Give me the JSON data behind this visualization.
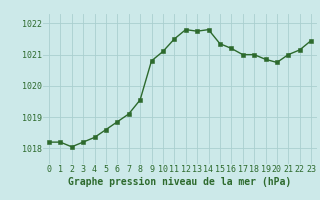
{
  "x": [
    0,
    1,
    2,
    3,
    4,
    5,
    6,
    7,
    8,
    9,
    10,
    11,
    12,
    13,
    14,
    15,
    16,
    17,
    18,
    19,
    20,
    21,
    22,
    23
  ],
  "y": [
    1018.2,
    1018.2,
    1018.05,
    1018.2,
    1018.35,
    1018.6,
    1018.85,
    1019.1,
    1019.55,
    1020.8,
    1021.1,
    1021.5,
    1021.8,
    1021.75,
    1021.8,
    1021.35,
    1021.2,
    1021.0,
    1021.0,
    1020.85,
    1020.75,
    1021.0,
    1021.15,
    1021.45
  ],
  "ylim": [
    1017.5,
    1022.3
  ],
  "yticks": [
    1018,
    1019,
    1020,
    1021,
    1022
  ],
  "xticks": [
    0,
    1,
    2,
    3,
    4,
    5,
    6,
    7,
    8,
    9,
    10,
    11,
    12,
    13,
    14,
    15,
    16,
    17,
    18,
    19,
    20,
    21,
    22,
    23
  ],
  "line_color": "#2d6a2d",
  "marker_color": "#2d6a2d",
  "bg_color": "#cce9e9",
  "grid_color": "#aacfcf",
  "xlabel": "Graphe pression niveau de la mer (hPa)",
  "xlabel_fontsize": 7,
  "tick_fontsize": 6,
  "line_width": 1.0,
  "marker_size": 2.2,
  "fig_bg_color": "#cce9e9"
}
